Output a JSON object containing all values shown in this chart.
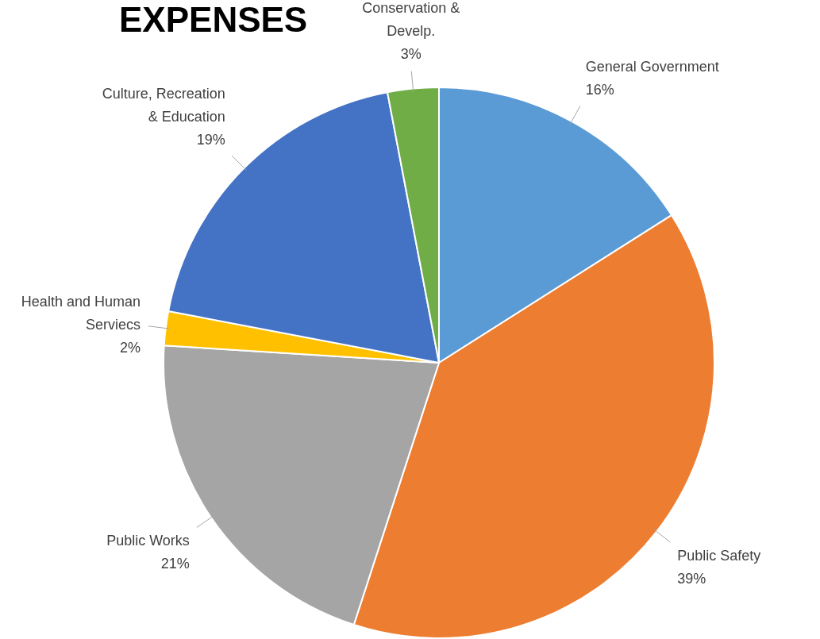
{
  "chart_data": {
    "type": "pie",
    "title": "EXPENSES",
    "categories": [
      "General Government",
      "Public Safety",
      "Public Works",
      "Health and Human Serviecs",
      "Culture, Recreation & Education",
      "Conservation & Develp."
    ],
    "values": [
      16,
      39,
      21,
      2,
      19,
      3
    ],
    "colors": [
      "#5b9bd5",
      "#ed7d31",
      "#a5a5a5",
      "#ffc000",
      "#4472c4",
      "#70ad47"
    ],
    "value_labels": [
      "16%",
      "39%",
      "21%",
      "2%",
      "19%",
      "3%"
    ],
    "legend": false
  }
}
